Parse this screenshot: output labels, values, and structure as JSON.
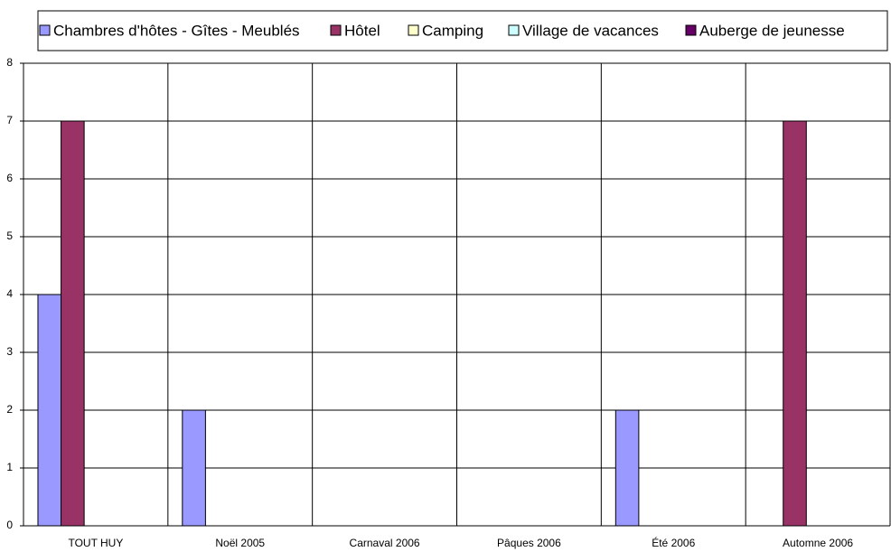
{
  "chart_data": {
    "type": "bar",
    "categories": [
      "TOUT HUY",
      "Noël 2005",
      "Carnaval 2006",
      "Pâques 2006",
      "Été 2006",
      "Automne 2006"
    ],
    "series": [
      {
        "name": "Chambres d'hôtes - Gîtes - Meublés",
        "color": "#9999ff",
        "values": [
          4,
          2,
          0,
          0,
          2,
          0
        ]
      },
      {
        "name": "Hôtel",
        "color": "#993366",
        "values": [
          7,
          0,
          0,
          0,
          0,
          7
        ]
      },
      {
        "name": "Camping",
        "color": "#ffffcc",
        "values": [
          0,
          0,
          0,
          0,
          0,
          0
        ]
      },
      {
        "name": "Village de vacances",
        "color": "#ccffff",
        "values": [
          0,
          0,
          0,
          0,
          0,
          0
        ]
      },
      {
        "name": "Auberge de jeunesse",
        "color": "#660066",
        "values": [
          0,
          0,
          0,
          0,
          0,
          0
        ]
      }
    ],
    "ylim": [
      0,
      8
    ],
    "yticks": [
      0,
      1,
      2,
      3,
      4,
      5,
      6,
      7,
      8
    ],
    "grid": true,
    "legend": "top"
  }
}
